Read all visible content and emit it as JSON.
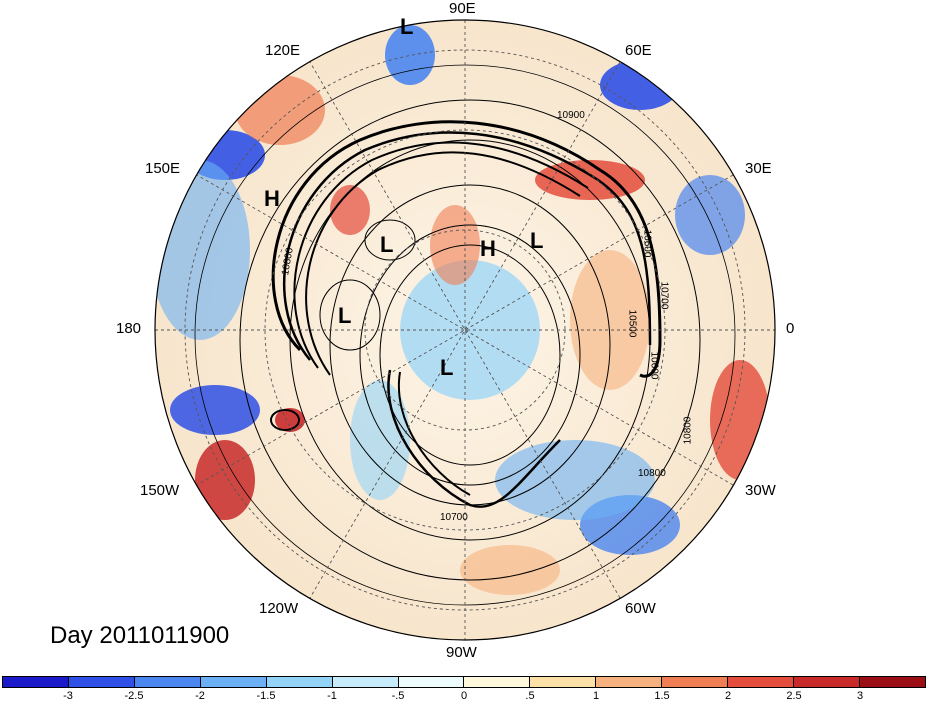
{
  "map": {
    "title": "Day 2011011900",
    "longitude_labels": [
      "90E",
      "60E",
      "30E",
      "0",
      "30W",
      "60W",
      "90W",
      "120W",
      "150W",
      "180",
      "150E",
      "120E"
    ],
    "pressure_markers": [
      "L",
      "H",
      "L",
      "H",
      "L",
      "L",
      "L"
    ],
    "contour_labels": [
      "10900",
      "10800",
      "10600",
      "10700",
      "10500",
      "10600",
      "10800",
      "10800",
      "10700"
    ]
  },
  "colorbar": {
    "ticks": [
      "-3",
      "-2.5",
      "-2",
      "-1.5",
      "-1",
      "-.5",
      "0",
      ".5",
      "1",
      "1.5",
      "2",
      "2.5",
      "3"
    ],
    "colors": [
      "#1a1acb",
      "#2f50e6",
      "#4b86f0",
      "#6bb0f5",
      "#93d3f8",
      "#c6ecfb",
      "#eefbfd",
      "#fdf8dc",
      "#fbe0a8",
      "#f6b27e",
      "#f07e55",
      "#e44c3c",
      "#c82a2a",
      "#9c0e16"
    ]
  }
}
